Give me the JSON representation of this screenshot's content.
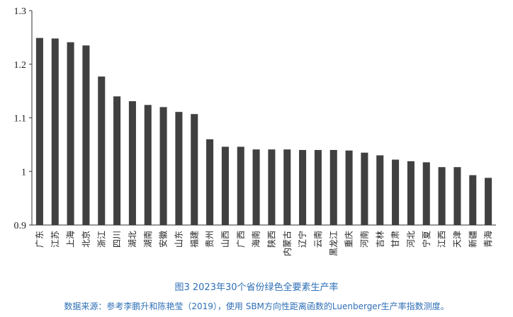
{
  "chart_data": {
    "type": "bar",
    "categories": [
      "广东",
      "江苏",
      "上海",
      "北京",
      "浙江",
      "四川",
      "湖北",
      "湖南",
      "安徽",
      "山东",
      "福建",
      "贵州",
      "山西",
      "广西",
      "海南",
      "陕西",
      "内蒙古",
      "辽宁",
      "云南",
      "黑龙江",
      "重庆",
      "河南",
      "吉林",
      "甘肃",
      "河北",
      "宁夏",
      "江西",
      "天津",
      "新疆",
      "青海"
    ],
    "values": [
      1.249,
      1.248,
      1.241,
      1.235,
      1.177,
      1.14,
      1.131,
      1.124,
      1.12,
      1.111,
      1.107,
      1.06,
      1.046,
      1.046,
      1.041,
      1.041,
      1.041,
      1.04,
      1.04,
      1.04,
      1.039,
      1.035,
      1.03,
      1.022,
      1.019,
      1.017,
      1.008,
      1.008,
      0.993,
      0.988
    ],
    "ylim": [
      0.9,
      1.3
    ],
    "yticks": [
      0.9,
      1,
      1.1,
      1.2,
      1.3
    ],
    "ytick_labels": [
      "0.9",
      "1",
      "1.1",
      "1.2",
      "1.3"
    ],
    "bar_color": "#404040",
    "grid": false,
    "title": "",
    "xlabel": "",
    "ylabel": ""
  },
  "caption": "图3  2023年30个省份绿色全要素生产率",
  "source": "数据来源：参考李鹏升和陈艳莹（2019），使用 SBM方向性距离函数的Luenberger生产率指数测度。",
  "colors": {
    "caption": "#2e6fb6",
    "axis": "#333333"
  }
}
